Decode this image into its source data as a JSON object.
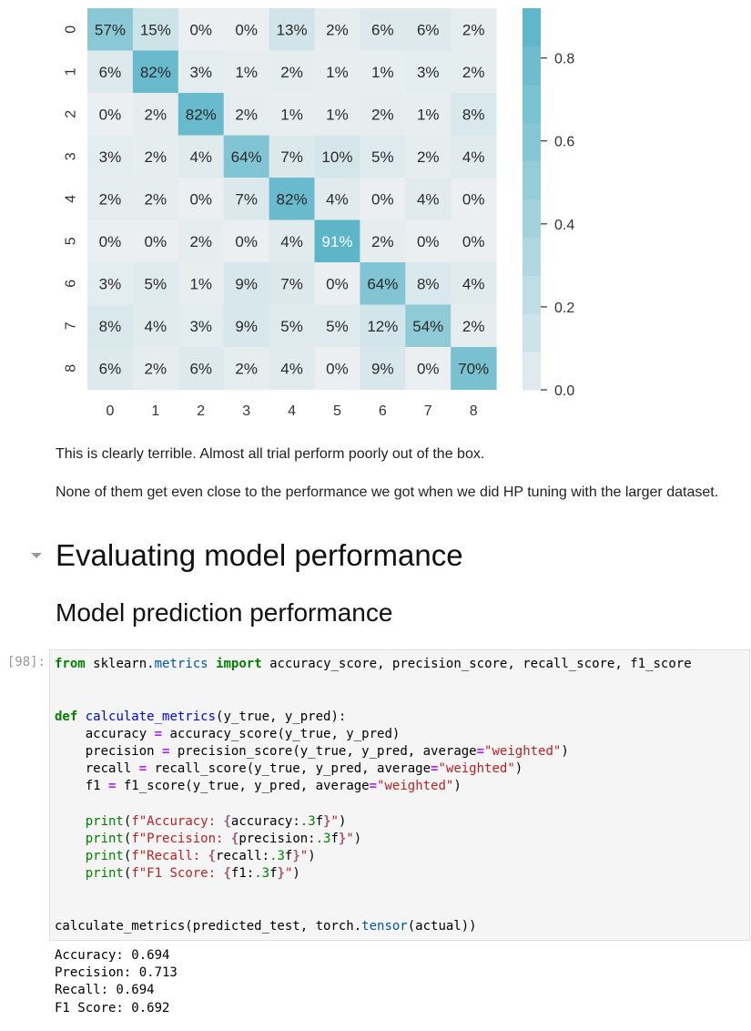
{
  "chart_data": {
    "type": "heatmap",
    "x_labels": [
      "0",
      "1",
      "2",
      "3",
      "4",
      "5",
      "6",
      "7",
      "8"
    ],
    "y_labels": [
      "0",
      "1",
      "2",
      "3",
      "4",
      "5",
      "6",
      "7",
      "8"
    ],
    "values": [
      [
        0.57,
        0.15,
        0.0,
        0.0,
        0.13,
        0.02,
        0.06,
        0.06,
        0.02
      ],
      [
        0.06,
        0.82,
        0.03,
        0.01,
        0.02,
        0.01,
        0.01,
        0.03,
        0.02
      ],
      [
        0.0,
        0.02,
        0.82,
        0.02,
        0.01,
        0.01,
        0.02,
        0.01,
        0.08
      ],
      [
        0.03,
        0.02,
        0.04,
        0.64,
        0.07,
        0.1,
        0.05,
        0.02,
        0.04
      ],
      [
        0.02,
        0.02,
        0.0,
        0.07,
        0.82,
        0.04,
        0.0,
        0.04,
        0.0
      ],
      [
        0.0,
        0.0,
        0.02,
        0.0,
        0.04,
        0.91,
        0.02,
        0.0,
        0.0
      ],
      [
        0.03,
        0.05,
        0.01,
        0.09,
        0.07,
        0.0,
        0.64,
        0.08,
        0.04
      ],
      [
        0.08,
        0.04,
        0.03,
        0.09,
        0.05,
        0.05,
        0.12,
        0.54,
        0.02
      ],
      [
        0.06,
        0.02,
        0.06,
        0.02,
        0.04,
        0.0,
        0.09,
        0.0,
        0.7
      ]
    ],
    "cell_labels": [
      [
        "57%",
        "15%",
        "0%",
        "0%",
        "13%",
        "2%",
        "6%",
        "6%",
        "2%"
      ],
      [
        "6%",
        "82%",
        "3%",
        "1%",
        "2%",
        "1%",
        "1%",
        "3%",
        "2%"
      ],
      [
        "0%",
        "2%",
        "82%",
        "2%",
        "1%",
        "1%",
        "2%",
        "1%",
        "8%"
      ],
      [
        "3%",
        "2%",
        "4%",
        "64%",
        "7%",
        "10%",
        "5%",
        "2%",
        "4%"
      ],
      [
        "2%",
        "2%",
        "0%",
        "7%",
        "82%",
        "4%",
        "0%",
        "4%",
        "0%"
      ],
      [
        "0%",
        "0%",
        "2%",
        "0%",
        "4%",
        "91%",
        "2%",
        "0%",
        "0%"
      ],
      [
        "3%",
        "5%",
        "1%",
        "9%",
        "7%",
        "0%",
        "64%",
        "8%",
        "4%"
      ],
      [
        "8%",
        "4%",
        "3%",
        "9%",
        "5%",
        "5%",
        "12%",
        "54%",
        "2%"
      ],
      [
        "6%",
        "2%",
        "6%",
        "2%",
        "4%",
        "0%",
        "9%",
        "0%",
        "70%"
      ]
    ],
    "colorbar": {
      "range": [
        0.0,
        0.92
      ],
      "ticks": [
        0.0,
        0.2,
        0.4,
        0.6,
        0.8
      ],
      "tick_labels": [
        "0.0",
        "0.2",
        "0.4",
        "0.6",
        "0.8"
      ],
      "bins": 10
    },
    "color_low": "#ebeff1",
    "color_high": "#5bb5c8",
    "annot_dark": "#2a2a2a",
    "annot_light": "#ffffff",
    "title": "",
    "xlabel": "",
    "ylabel": "",
    "grid": false
  },
  "markdown": {
    "p1": "This is clearly terrible. Almost all trial perform poorly out of the box.",
    "p2": "None of them get even close to the performance we got when we did HP tuning with the larger dataset."
  },
  "headings": {
    "h1": "Evaluating model performance",
    "h2": "Model prediction performance"
  },
  "cell": {
    "prompt": "[98]:",
    "output": "Accuracy: 0.694\nPrecision: 0.713\nRecall: 0.694\nF1 Score: 0.692"
  },
  "code": {
    "l1": {
      "k1": "from",
      "mod1": "sklearn",
      "mod2": "metrics",
      "k2": "import",
      "rest": " accuracy_score, precision_score, recall_score, f1_score"
    },
    "l2": {
      "kw": "def",
      "fn": "calculate_metrics",
      "rest": "(y_true, y_pred):"
    },
    "l3": {
      "a": "    accuracy ",
      "op": "=",
      "b": " accuracy_score(y_true, y_pred)"
    },
    "l4": {
      "a": "    precision ",
      "op1": "=",
      "b": " precision_score(y_true, y_pred, average",
      "op2": "=",
      "str": "\"weighted\"",
      "c": ")"
    },
    "l5": {
      "a": "    recall ",
      "op1": "=",
      "b": " recall_score(y_true, y_pred, average",
      "op2": "=",
      "str": "\"weighted\"",
      "c": ")"
    },
    "l6": {
      "a": "    f1 ",
      "op1": "=",
      "b": " f1_score(y_true, y_pred, average",
      "op2": "=",
      "str": "\"weighted\"",
      "c": ")"
    },
    "l7": {
      "print": "print",
      "open": "(",
      "fstr": "f\"Accuracy: ",
      "lb": "{",
      "var": "accuracy:",
      "fmt": ".3",
      "f": "f",
      "rb": "}",
      "end": "\"",
      "close": ")"
    },
    "l8": {
      "print": "print",
      "open": "(",
      "fstr": "f\"Precision: ",
      "lb": "{",
      "var": "precision:",
      "fmt": ".3",
      "f": "f",
      "rb": "}",
      "end": "\"",
      "close": ")"
    },
    "l9": {
      "print": "print",
      "open": "(",
      "fstr": "f\"Recall: ",
      "lb": "{",
      "var": "recall:",
      "fmt": ".3",
      "f": "f",
      "rb": "}",
      "end": "\"",
      "close": ")"
    },
    "l10": {
      "print": "print",
      "open": "(",
      "fstr": "f\"F1 Score: ",
      "lb": "{",
      "var": "f1:",
      "fmt": ".3",
      "f": "f",
      "rb": "}",
      "end": "\"",
      "close": ")"
    },
    "l11": {
      "a": "calculate_metrics(predicted_test, torch.",
      "attr": "tensor",
      "b": "(actual))"
    }
  }
}
